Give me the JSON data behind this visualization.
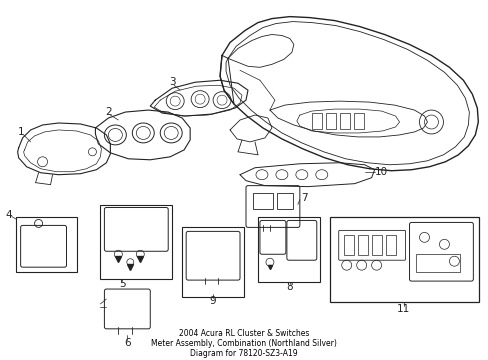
{
  "background_color": "#ffffff",
  "line_color": "#222222",
  "fig_width": 4.89,
  "fig_height": 3.6,
  "dpi": 100,
  "title_lines": [
    "2004 Acura RL Cluster & Switches",
    "Meter Assembly, Combination (Northland Silver)",
    "Diagram for 78120-SZ3-A19"
  ],
  "label_fontsize": 7.5,
  "title_fontsize": 5.5
}
